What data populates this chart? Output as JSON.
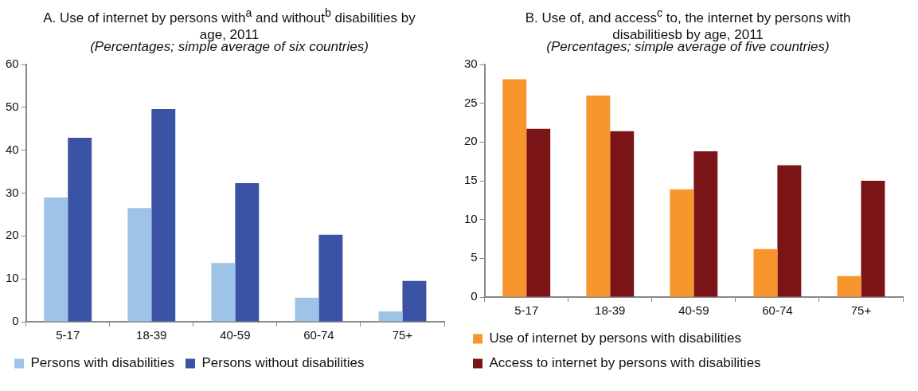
{
  "chart_data": [
    {
      "type": "bar",
      "title": "A. Use of internet by persons with$^{a}$ and without$^{b}$ disabilities by age, 2011",
      "subtitle": "(Percentages; simple average of six countries)",
      "categories": [
        "5-17",
        "18-39",
        "40-59",
        "60-74",
        "75+"
      ],
      "series": [
        {
          "name": "Persons with disabilities",
          "color": "#9dc3e6",
          "values": [
            29,
            26.5,
            13.7,
            5.6,
            2.4
          ]
        },
        {
          "name": "Persons without disabilities",
          "color": "#3a53a4",
          "values": [
            42.9,
            49.6,
            32.3,
            20.3,
            9.5
          ]
        }
      ],
      "ylim": [
        0,
        60
      ],
      "yticks": [
        0,
        10,
        20,
        30,
        40,
        50,
        60
      ],
      "grid": false,
      "legend": "bottom"
    },
    {
      "type": "bar",
      "title": "B. Use of, and access$^{c}$ to, the internet by persons with disabilitiesb by age, 2011",
      "subtitle": "(Percentages; simple average of five countries)",
      "categories": [
        "5-17",
        "18-39",
        "40-59",
        "60-74",
        "75+"
      ],
      "series": [
        {
          "name": "Use of internet by persons with disabilities",
          "color": "#f7962d",
          "values": [
            28.1,
            26.0,
            13.9,
            6.2,
            2.7
          ]
        },
        {
          "name": "Access to internet by persons with disabilities",
          "color": "#7b1416",
          "values": [
            21.7,
            21.4,
            18.8,
            17.0,
            15.0
          ]
        }
      ],
      "ylim": [
        0,
        30
      ],
      "yticks": [
        0,
        5,
        10,
        15,
        20,
        25,
        30
      ],
      "grid": false,
      "legend": "bottom"
    }
  ]
}
